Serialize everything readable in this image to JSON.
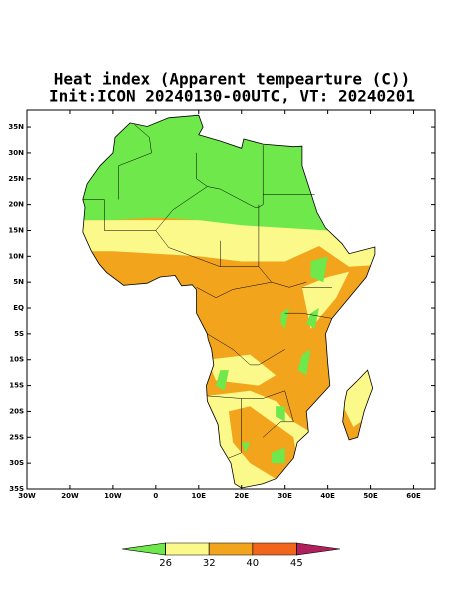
{
  "map": {
    "title": "Heat index (Apparent tempearture (C))",
    "subtitle": "Init:ICON 20240130-00UTC, VT: 20240201",
    "xlim": [
      -30,
      65
    ],
    "ylim": [
      -35,
      38.3
    ],
    "xticks": [
      {
        "value": -30,
        "label": "30W"
      },
      {
        "value": -20,
        "label": "20W"
      },
      {
        "value": -10,
        "label": "10W"
      },
      0,
      {
        "value": 10,
        "label": "10E"
      },
      {
        "value": 20,
        "label": "20E"
      },
      {
        "value": 30,
        "label": "30E"
      },
      {
        "value": 40,
        "label": "40E"
      },
      {
        "value": 50,
        "label": "50E"
      },
      {
        "value": 60,
        "label": "60E"
      }
    ],
    "yticks": [
      {
        "value": 35,
        "label": "35N"
      },
      {
        "value": 30,
        "label": "30N"
      },
      {
        "value": 25,
        "label": "25N"
      },
      {
        "value": 20,
        "label": "20N"
      },
      {
        "value": 15,
        "label": "15N"
      },
      {
        "value": 10,
        "label": "10N"
      },
      {
        "value": 5,
        "label": "5N"
      },
      {
        "value": 0,
        "label": "EQ"
      },
      {
        "value": -5,
        "label": "5S"
      },
      {
        "value": -10,
        "label": "10S"
      },
      {
        "value": -15,
        "label": "15S"
      },
      {
        "value": -20,
        "label": "20S"
      },
      {
        "value": -25,
        "label": "25S"
      },
      {
        "value": -30,
        "label": "30S"
      },
      {
        "value": -35,
        "label": "35S"
      }
    ],
    "colorbar": {
      "levels": [
        26,
        32,
        40,
        45
      ],
      "colors": [
        "#6ee84a",
        "#fbf98a",
        "#f2a41c",
        "#f2661c",
        "#b0205a"
      ]
    }
  }
}
